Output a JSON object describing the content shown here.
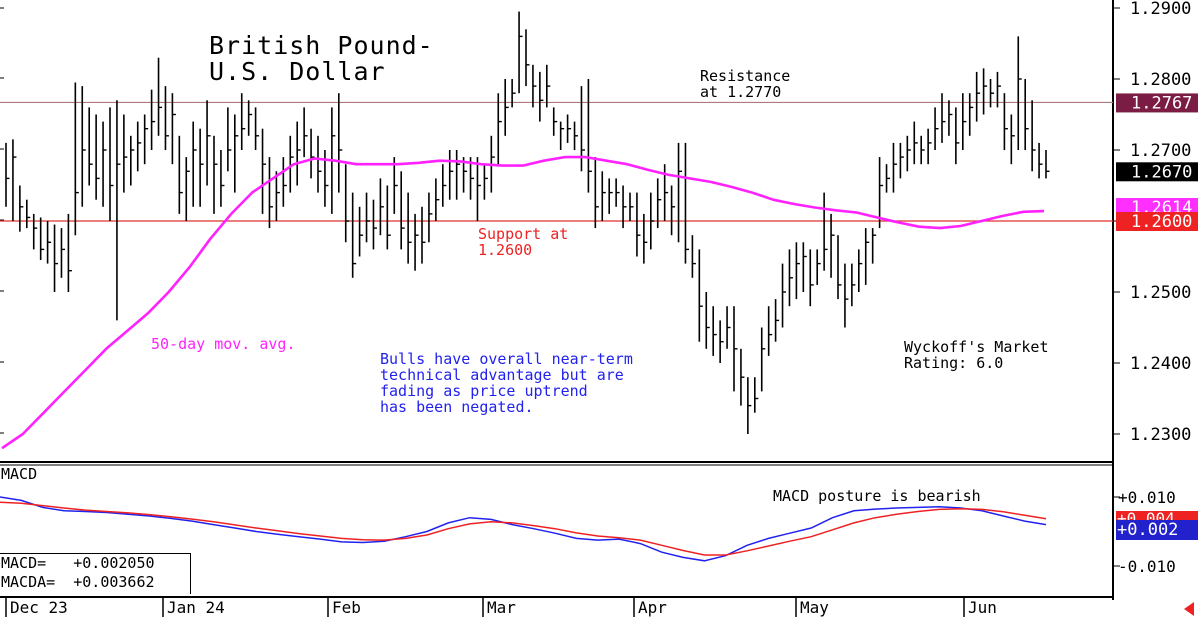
{
  "chart_data": [
    {
      "type": "ohlc",
      "title": "British Pound-\nU.S. Dollar",
      "ylim": [
        1.226,
        1.292
      ],
      "yticks": [
        "1.2900",
        "1.2800",
        "1.2700",
        "1.2600",
        "1.2500",
        "1.2400",
        "1.2300"
      ],
      "xticks": [
        "Dec 23",
        "Jan 24",
        "Feb",
        "Mar",
        "Apr",
        "May",
        "Jun"
      ],
      "horizontal_lines": [
        {
          "name": "Resistance",
          "value": 1.2767,
          "color": "#b07880"
        },
        {
          "name": "Support",
          "value": 1.26,
          "color": "#e03030"
        }
      ],
      "price_tags": [
        {
          "label": "1.2767",
          "value": 1.2767,
          "bg": "#7b1c45",
          "fg": "#ffffff"
        },
        {
          "label": "1.2614",
          "value": 1.2614,
          "bg": "#ff30ff",
          "fg": "#ffffff"
        },
        {
          "label": "1.2670",
          "value": 1.267,
          "bg": "#000000",
          "fg": "#ffffff"
        },
        {
          "label": "1.2600",
          "value": 1.26,
          "bg": "#ee2222",
          "fg": "#ffffff"
        }
      ],
      "annotations": [
        {
          "id": "resistance",
          "text": "Resistance\nat 1.2770",
          "color": "#000000"
        },
        {
          "id": "support",
          "text": "Support at\n1.2600",
          "color": "#ee2222"
        },
        {
          "id": "mavg",
          "text": "50-day mov. avg.",
          "color": "#ff22ff"
        },
        {
          "id": "bulls",
          "text": "Bulls have overall near-term\ntechnical advantage but are\nfading as price uptrend\nhas been negated.",
          "color": "#2222ee"
        },
        {
          "id": "wyckoff",
          "text": "Wyckoff's Market\nRating: 6.0",
          "color": "#000000"
        }
      ],
      "bars": [
        [
          1.271,
          1.262,
          1.266
        ],
        [
          1.2715,
          1.26,
          1.269
        ],
        [
          1.265,
          1.2585,
          1.262
        ],
        [
          1.263,
          1.259,
          1.2605
        ],
        [
          1.261,
          1.256,
          1.259
        ],
        [
          1.2605,
          1.2545,
          1.256
        ],
        [
          1.26,
          1.254,
          1.257
        ],
        [
          1.2595,
          1.25,
          1.254
        ],
        [
          1.259,
          1.252,
          1.256
        ],
        [
          1.261,
          1.25,
          1.253
        ],
        [
          1.2795,
          1.258,
          1.264
        ],
        [
          1.279,
          1.262,
          1.27
        ],
        [
          1.276,
          1.265,
          1.268
        ],
        [
          1.275,
          1.263,
          1.266
        ],
        [
          1.274,
          1.262,
          1.27
        ],
        [
          1.276,
          1.26,
          1.265
        ],
        [
          1.277,
          1.246,
          1.268
        ],
        [
          1.275,
          1.264,
          1.269
        ],
        [
          1.272,
          1.265,
          1.27
        ],
        [
          1.274,
          1.267,
          1.271
        ],
        [
          1.275,
          1.268,
          1.273
        ],
        [
          1.2785,
          1.27,
          1.274
        ],
        [
          1.283,
          1.272,
          1.276
        ],
        [
          1.279,
          1.27,
          1.272
        ],
        [
          1.278,
          1.268,
          1.275
        ],
        [
          1.272,
          1.261,
          1.264
        ],
        [
          1.269,
          1.26,
          1.267
        ],
        [
          1.274,
          1.262,
          1.27
        ],
        [
          1.273,
          1.262,
          1.268
        ],
        [
          1.277,
          1.265,
          1.272
        ],
        [
          1.272,
          1.261,
          1.268
        ],
        [
          1.27,
          1.262,
          1.265
        ],
        [
          1.276,
          1.267,
          1.27
        ],
        [
          1.275,
          1.264,
          1.272
        ],
        [
          1.278,
          1.27,
          1.273
        ],
        [
          1.277,
          1.272,
          1.275
        ],
        [
          1.276,
          1.27,
          1.272
        ],
        [
          1.273,
          1.261,
          1.268
        ],
        [
          1.269,
          1.259,
          1.262
        ],
        [
          1.267,
          1.26,
          1.264
        ],
        [
          1.269,
          1.262,
          1.265
        ],
        [
          1.272,
          1.264,
          1.269
        ],
        [
          1.274,
          1.265,
          1.27
        ],
        [
          1.276,
          1.269,
          1.272
        ],
        [
          1.273,
          1.266,
          1.269
        ],
        [
          1.272,
          1.264,
          1.267
        ],
        [
          1.27,
          1.262,
          1.265
        ],
        [
          1.276,
          1.261,
          1.272
        ],
        [
          1.278,
          1.264,
          1.27
        ],
        [
          1.268,
          1.257,
          1.26
        ],
        [
          1.264,
          1.252,
          1.254
        ],
        [
          1.262,
          1.255,
          1.258
        ],
        [
          1.264,
          1.257,
          1.26
        ],
        [
          1.263,
          1.256,
          1.259
        ],
        [
          1.266,
          1.258,
          1.262
        ],
        [
          1.265,
          1.256,
          1.258
        ],
        [
          1.269,
          1.261,
          1.265
        ],
        [
          1.267,
          1.256,
          1.259
        ],
        [
          1.264,
          1.254,
          1.257
        ],
        [
          1.261,
          1.253,
          1.258
        ],
        [
          1.262,
          1.254,
          1.257
        ],
        [
          1.264,
          1.257,
          1.261
        ],
        [
          1.266,
          1.26,
          1.263
        ],
        [
          1.268,
          1.262,
          1.265
        ],
        [
          1.27,
          1.263,
          1.267
        ],
        [
          1.27,
          1.263,
          1.268
        ],
        [
          1.269,
          1.264,
          1.267
        ],
        [
          1.269,
          1.263,
          1.266
        ],
        [
          1.269,
          1.26,
          1.265
        ],
        [
          1.268,
          1.263,
          1.266
        ],
        [
          1.272,
          1.264,
          1.269
        ],
        [
          1.278,
          1.268,
          1.274
        ],
        [
          1.28,
          1.272,
          1.276
        ],
        [
          1.28,
          1.276,
          1.278
        ],
        [
          1.2895,
          1.278,
          1.286
        ],
        [
          1.287,
          1.279,
          1.282
        ],
        [
          1.282,
          1.276,
          1.279
        ],
        [
          1.281,
          1.274,
          1.277
        ],
        [
          1.282,
          1.276,
          1.279
        ],
        [
          1.276,
          1.272,
          1.274
        ],
        [
          1.274,
          1.27,
          1.273
        ],
        [
          1.275,
          1.271,
          1.273
        ],
        [
          1.274,
          1.27,
          1.272
        ],
        [
          1.279,
          1.267,
          1.27
        ],
        [
          1.28,
          1.264,
          1.267
        ],
        [
          1.269,
          1.259,
          1.262
        ],
        [
          1.267,
          1.26,
          1.264
        ],
        [
          1.266,
          1.261,
          1.264
        ],
        [
          1.266,
          1.262,
          1.264
        ],
        [
          1.265,
          1.259,
          1.262
        ],
        [
          1.264,
          1.26,
          1.262
        ],
        [
          1.264,
          1.255,
          1.258
        ],
        [
          1.261,
          1.254,
          1.257
        ],
        [
          1.264,
          1.256,
          1.26
        ],
        [
          1.266,
          1.259,
          1.263
        ],
        [
          1.268,
          1.26,
          1.264
        ],
        [
          1.265,
          1.258,
          1.262
        ],
        [
          1.271,
          1.257,
          1.267
        ],
        [
          1.271,
          1.254,
          1.256
        ],
        [
          1.258,
          1.252,
          1.254
        ],
        [
          1.256,
          1.243,
          1.248
        ],
        [
          1.25,
          1.242,
          1.245
        ],
        [
          1.248,
          1.241,
          1.244
        ],
        [
          1.246,
          1.24,
          1.243
        ],
        [
          1.248,
          1.242,
          1.245
        ],
        [
          1.248,
          1.236,
          1.242
        ],
        [
          1.242,
          1.234,
          1.238
        ],
        [
          1.238,
          1.23,
          1.234
        ],
        [
          1.238,
          1.233,
          1.235
        ],
        [
          1.245,
          1.236,
          1.242
        ],
        [
          1.248,
          1.241,
          1.244
        ],
        [
          1.249,
          1.243,
          1.246
        ],
        [
          1.254,
          1.245,
          1.25
        ],
        [
          1.256,
          1.248,
          1.252
        ],
        [
          1.257,
          1.249,
          1.254
        ],
        [
          1.257,
          1.25,
          1.255
        ],
        [
          1.256,
          1.248,
          1.251
        ],
        [
          1.256,
          1.251,
          1.254
        ],
        [
          1.264,
          1.253,
          1.256
        ],
        [
          1.261,
          1.252,
          1.258
        ],
        [
          1.258,
          1.249,
          1.251
        ],
        [
          1.254,
          1.245,
          1.249
        ],
        [
          1.254,
          1.248,
          1.251
        ],
        [
          1.256,
          1.25,
          1.254
        ],
        [
          1.259,
          1.251,
          1.257
        ],
        [
          1.259,
          1.254,
          1.258
        ],
        [
          1.269,
          1.259,
          1.265
        ],
        [
          1.268,
          1.264,
          1.266
        ],
        [
          1.271,
          1.264,
          1.268
        ],
        [
          1.271,
          1.266,
          1.269
        ],
        [
          1.272,
          1.267,
          1.27
        ],
        [
          1.274,
          1.268,
          1.271
        ],
        [
          1.272,
          1.268,
          1.27
        ],
        [
          1.273,
          1.268,
          1.271
        ],
        [
          1.276,
          1.27,
          1.273
        ],
        [
          1.278,
          1.271,
          1.274
        ],
        [
          1.277,
          1.272,
          1.275
        ],
        [
          1.276,
          1.268,
          1.271
        ],
        [
          1.278,
          1.27,
          1.274
        ],
        [
          1.278,
          1.272,
          1.276
        ],
        [
          1.281,
          1.274,
          1.278
        ],
        [
          1.2815,
          1.275,
          1.279
        ],
        [
          1.28,
          1.276,
          1.278
        ],
        [
          1.281,
          1.276,
          1.279
        ],
        [
          1.278,
          1.27,
          1.273
        ],
        [
          1.275,
          1.268,
          1.272
        ],
        [
          1.286,
          1.27,
          1.28
        ],
        [
          1.28,
          1.27,
          1.273
        ],
        [
          1.277,
          1.267,
          1.27
        ],
        [
          1.271,
          1.266,
          1.268
        ],
        [
          1.27,
          1.266,
          1.267
        ]
      ],
      "moving_average": {
        "name": "50-day mov. avg.",
        "color": "#ff22ff",
        "values": [
          1.228,
          1.23,
          1.233,
          1.236,
          1.239,
          1.242,
          1.2445,
          1.247,
          1.25,
          1.2535,
          1.2575,
          1.261,
          1.264,
          1.266,
          1.268,
          1.2688,
          1.2685,
          1.268,
          1.268,
          1.268,
          1.2682,
          1.2685,
          1.2684,
          1.268,
          1.2678,
          1.2678,
          1.2685,
          1.269,
          1.269,
          1.2685,
          1.268,
          1.2672,
          1.2665,
          1.266,
          1.2655,
          1.2648,
          1.264,
          1.263,
          1.2624,
          1.2619,
          1.2615,
          1.2612,
          1.2605,
          1.2598,
          1.2592,
          1.259,
          1.2593,
          1.26,
          1.2607,
          1.2613,
          1.2614
        ]
      },
      "xlabel": "",
      "ylabel": ""
    },
    {
      "type": "line",
      "title": "MACD",
      "ylim": [
        -0.013,
        0.013
      ],
      "yticks": [
        "+0.010",
        "-0.010"
      ],
      "annotation": "MACD posture is bearish",
      "readout": [
        "MACD=   +0.002050",
        "MACDA=  +0.003662"
      ],
      "price_tags": [
        {
          "label": "+0.004",
          "value": 0.0037,
          "bg": "#ee2222",
          "fg": "#ffffff"
        },
        {
          "label": "+0.002",
          "value": 0.002,
          "bg": "#2222cc",
          "fg": "#ffffff"
        }
      ],
      "series": [
        {
          "name": "MACD",
          "color": "#2222ee",
          "values": [
            0.01,
            0.009,
            0.007,
            0.006,
            0.0058,
            0.0055,
            0.005,
            0.0045,
            0.0038,
            0.003,
            0.002,
            0.001,
            0.0,
            -0.0008,
            -0.0015,
            -0.0022,
            -0.003,
            -0.0032,
            -0.0028,
            -0.0015,
            0.0,
            0.0025,
            0.004,
            0.0035,
            0.002,
            0.0008,
            -0.0005,
            -0.002,
            -0.0025,
            -0.0022,
            -0.0035,
            -0.006,
            -0.0075,
            -0.0085,
            -0.007,
            -0.004,
            -0.002,
            -0.0005,
            0.001,
            0.004,
            0.006,
            0.0065,
            0.0068,
            0.007,
            0.0072,
            0.0068,
            0.006,
            0.0045,
            0.003,
            0.002
          ]
        },
        {
          "name": "MACDA",
          "color": "#ee2222",
          "values": [
            0.0085,
            0.0082,
            0.0075,
            0.0068,
            0.0062,
            0.0058,
            0.0054,
            0.0049,
            0.0043,
            0.0036,
            0.0028,
            0.0019,
            0.001,
            0.0002,
            -0.0006,
            -0.0013,
            -0.002,
            -0.0024,
            -0.0025,
            -0.002,
            -0.001,
            0.0008,
            0.0022,
            0.0028,
            0.0025,
            0.0017,
            0.0008,
            -0.0004,
            -0.0013,
            -0.0018,
            -0.0025,
            -0.004,
            -0.0055,
            -0.0068,
            -0.0068,
            -0.0056,
            -0.0042,
            -0.0028,
            -0.0015,
            0.0005,
            0.0025,
            0.004,
            0.005,
            0.0058,
            0.0064,
            0.0066,
            0.0064,
            0.0057,
            0.0047,
            0.0037
          ]
        }
      ]
    }
  ],
  "labels": {
    "title_line1": "British Pound-",
    "title_line2": "U.S. Dollar",
    "resistance": "Resistance\nat 1.2770",
    "support": "Support at\n1.2600",
    "mavg": "50-day mov. avg.",
    "bulls": "Bulls have overall near-term\ntechnical advantage but are\nfading as price uptrend\nhas been negated.",
    "wyckoff": "Wyckoff's Market\nRating: 6.0",
    "macd_title": "MACD",
    "macd_posture": "MACD posture is bearish",
    "macd_value": "MACD=   +0.002050",
    "macda_value": "MACDA=  +0.003662"
  },
  "colors": {
    "axis": "#000000",
    "background": "#ffffff",
    "arrow": "#ee2222"
  },
  "icons": {
    "scroll_arrow": "left-arrow-icon"
  }
}
